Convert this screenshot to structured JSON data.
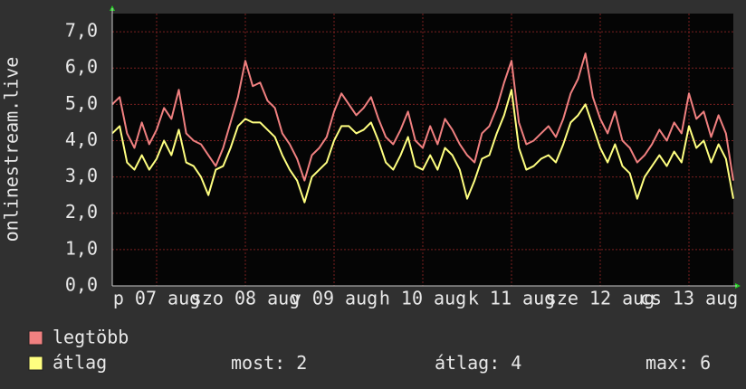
{
  "chart_data": {
    "type": "line",
    "ylabel": "onlinestream.live",
    "x": [
      0,
      2,
      4,
      6,
      8,
      10,
      12,
      14,
      16,
      18,
      20,
      22,
      24,
      26,
      28,
      30,
      32,
      34,
      36,
      38,
      40,
      42,
      44,
      46,
      48,
      50,
      52,
      54,
      56,
      58,
      60,
      62,
      64,
      66,
      68,
      70,
      72,
      74,
      76,
      78,
      80,
      82,
      84,
      86,
      88,
      90,
      92,
      94,
      96,
      98,
      100,
      102,
      104,
      106,
      108,
      110,
      112,
      114,
      116,
      118,
      120,
      122,
      124,
      126,
      128,
      130,
      132,
      134,
      136,
      138,
      140,
      142,
      144,
      146,
      148,
      150,
      152,
      154,
      156,
      158,
      160,
      162,
      164,
      166,
      168
    ],
    "xlim": [
      0,
      168
    ],
    "xticks": [
      {
        "value": 12,
        "label": "p 07 aug"
      },
      {
        "value": 36,
        "label": "szo 08 aug"
      },
      {
        "value": 60,
        "label": "v 09 aug"
      },
      {
        "value": 84,
        "label": "h 10 aug"
      },
      {
        "value": 108,
        "label": "k 11 aug"
      },
      {
        "value": 132,
        "label": "sze 12 aug"
      },
      {
        "value": 156,
        "label": "cs 13 aug"
      }
    ],
    "ylim": [
      0,
      7.5
    ],
    "yticks": [
      {
        "value": 0,
        "label": "0,0"
      },
      {
        "value": 1,
        "label": "1,0"
      },
      {
        "value": 2,
        "label": "2,0"
      },
      {
        "value": 3,
        "label": "3,0"
      },
      {
        "value": 4,
        "label": "4,0"
      },
      {
        "value": 5,
        "label": "5,0"
      },
      {
        "value": 6,
        "label": "6,0"
      },
      {
        "value": 7,
        "label": "7,0"
      }
    ],
    "grid": true,
    "series": [
      {
        "name": "legtöbb",
        "color": "#f08080",
        "values": [
          5.0,
          5.2,
          4.2,
          3.8,
          4.5,
          3.9,
          4.3,
          4.9,
          4.6,
          5.4,
          4.2,
          4.0,
          3.9,
          3.6,
          3.3,
          3.8,
          4.5,
          5.2,
          6.2,
          5.5,
          5.6,
          5.1,
          4.9,
          4.2,
          3.9,
          3.5,
          2.9,
          3.6,
          3.8,
          4.1,
          4.8,
          5.3,
          5.0,
          4.7,
          4.9,
          5.2,
          4.6,
          4.1,
          3.9,
          4.3,
          4.8,
          4.0,
          3.8,
          4.4,
          3.9,
          4.6,
          4.3,
          3.9,
          3.6,
          3.4,
          4.2,
          4.4,
          4.9,
          5.6,
          6.2,
          4.5,
          3.9,
          4.0,
          4.2,
          4.4,
          4.1,
          4.6,
          5.3,
          5.7,
          6.4,
          5.2,
          4.6,
          4.2,
          4.8,
          4.0,
          3.8,
          3.4,
          3.6,
          3.9,
          4.3,
          4.0,
          4.5,
          4.2,
          5.3,
          4.6,
          4.8,
          4.1,
          4.7,
          4.2,
          2.9
        ]
      },
      {
        "name": "átlag",
        "color": "#ffff80",
        "values": [
          4.2,
          4.4,
          3.4,
          3.2,
          3.6,
          3.2,
          3.5,
          4.0,
          3.6,
          4.3,
          3.4,
          3.3,
          3.0,
          2.5,
          3.2,
          3.3,
          3.8,
          4.4,
          4.6,
          4.5,
          4.5,
          4.3,
          4.1,
          3.6,
          3.2,
          2.9,
          2.3,
          3.0,
          3.2,
          3.4,
          4.0,
          4.4,
          4.4,
          4.2,
          4.3,
          4.5,
          4.0,
          3.4,
          3.2,
          3.6,
          4.1,
          3.3,
          3.2,
          3.6,
          3.2,
          3.8,
          3.6,
          3.2,
          2.4,
          2.9,
          3.5,
          3.6,
          4.2,
          4.7,
          5.4,
          3.8,
          3.2,
          3.3,
          3.5,
          3.6,
          3.4,
          3.9,
          4.5,
          4.7,
          5.0,
          4.4,
          3.8,
          3.4,
          3.9,
          3.3,
          3.1,
          2.4,
          3.0,
          3.3,
          3.6,
          3.3,
          3.7,
          3.4,
          4.4,
          3.8,
          4.0,
          3.4,
          3.9,
          3.5,
          2.4
        ]
      }
    ],
    "stats": [
      {
        "label": "most:",
        "value": 2
      },
      {
        "label": "átlag:",
        "value": 4
      },
      {
        "label": "max:",
        "value": 6
      }
    ]
  }
}
